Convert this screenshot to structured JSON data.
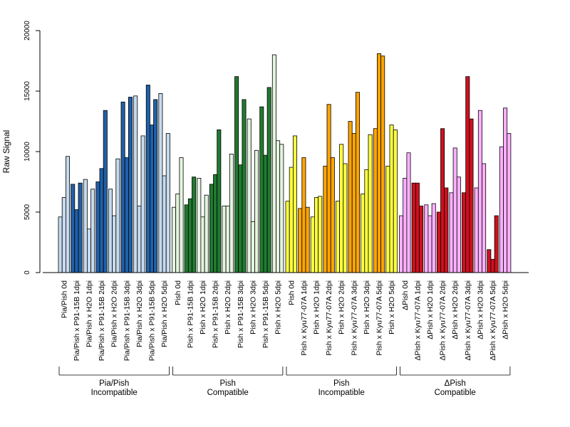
{
  "chart_data": {
    "type": "bar",
    "title": "",
    "xlabel": "",
    "ylabel": "Raw Signal",
    "ylim": [
      0,
      20000
    ],
    "yticks": [
      0,
      5000,
      10000,
      15000,
      20000
    ],
    "grid": false,
    "categories": [
      "Pia/Pish 0d",
      "Pia/Pish x P91-15B 1dpi",
      "Pia/Pish x H2O 1dpi",
      "Pia/Pish x P91-15B 2dpi",
      "Pia/Pish x H2O 2dpi",
      "Pia/Pish x P91-15B 3dpi",
      "Pia/Pish x H2O 3dpi",
      "Pia/Pish x P91-15B 5dpi",
      "Pia/Pish x H2O 5dpi",
      "Pish 0d",
      "Pish x P91-15B 1dpi",
      "Pish x H2O 1dpi",
      "Pish x P91-15B 2dpi",
      "Pish x H2O 2dpi",
      "Pish x P91-15B 3dpi",
      "Pish x H2O 3dpi",
      "Pish x P91-15B 5dpi",
      "Pish x H2O 5dpi",
      "Pish 0d",
      "Pish x Kyu77-07A 1dpi",
      "Pish x H2O 1dpi",
      "Pish x Kyu77-07A 2dpi",
      "Pish x H2O 2dpi",
      "Pish x Kyu77-07A 3dpi",
      "Pish x H2O 3dpi",
      "Pish x Kyu77-07A 5dpi",
      "Pish x H2O 5dpi",
      "ΔPish 0d",
      "ΔPish x Kyu77-07A 1dpi",
      "ΔPish x H2O 1dpi",
      "ΔPish x Kyu77-07A 2dpi",
      "ΔPish x H2O 2dpi",
      "ΔPish x Kyu77-07A 3dpi",
      "ΔPish x H2O 3dpi",
      "ΔPish x Kyu77-07A 5dpi",
      "ΔPish x H2O 5dpi"
    ],
    "bar_colors": {
      "light_blue": "#c6dbef",
      "dark_blue": "#2060a8",
      "light_green": "#e5f5e0",
      "dark_green": "#207a30",
      "yellow": "#ffff40",
      "orange": "#ffa500",
      "pink": "#ffb0ff",
      "red": "#d0101e"
    },
    "groups": [
      {
        "label_line1": "Pia/Pish",
        "label_line2": "Incompatible",
        "colors": [
          "light_blue",
          "dark_blue",
          "light_blue",
          "dark_blue",
          "light_blue",
          "dark_blue",
          "light_blue",
          "dark_blue",
          "light_blue"
        ],
        "values": [
          [
            4600,
            6200,
            9600
          ],
          [
            7300,
            5200,
            7400
          ],
          [
            7700,
            3600,
            6900
          ],
          [
            7500,
            8600,
            13400
          ],
          [
            6900,
            4700,
            9400
          ],
          [
            14100,
            9500,
            14500
          ],
          [
            14600,
            5500,
            11300
          ],
          [
            15500,
            12200,
            14300
          ],
          [
            14800,
            8000,
            11500
          ]
        ]
      },
      {
        "label_line1": "Pish",
        "label_line2": "Compatible",
        "colors": [
          "light_green",
          "dark_green",
          "light_green",
          "dark_green",
          "light_green",
          "dark_green",
          "light_green",
          "dark_green",
          "light_green"
        ],
        "values": [
          [
            5400,
            6500,
            9500
          ],
          [
            5600,
            6100,
            7900
          ],
          [
            7800,
            4600,
            6400
          ],
          [
            7300,
            8100,
            11800
          ],
          [
            5500,
            5500,
            9800
          ],
          [
            16200,
            8900,
            14300
          ],
          [
            12700,
            4200,
            10100
          ],
          [
            13700,
            9700,
            15300
          ],
          [
            18000,
            10900,
            10600
          ]
        ]
      },
      {
        "label_line1": "Pish",
        "label_line2": "Incompatible",
        "colors": [
          "yellow",
          "orange",
          "yellow",
          "orange",
          "yellow",
          "orange",
          "yellow",
          "orange",
          "yellow"
        ],
        "values": [
          [
            5900,
            8700,
            11300
          ],
          [
            5300,
            9500,
            5400
          ],
          [
            4600,
            6200,
            6300
          ],
          [
            8800,
            13900,
            9500
          ],
          [
            5900,
            10600,
            9000
          ],
          [
            12500,
            11500,
            14900
          ],
          [
            6500,
            8500,
            11400
          ],
          [
            11900,
            18100,
            17900
          ],
          [
            8800,
            12200,
            11800
          ]
        ]
      },
      {
        "label_line1": "ΔPish",
        "label_line2": "Compatible",
        "colors": [
          "pink",
          "red",
          "pink",
          "red",
          "pink",
          "red",
          "pink",
          "red",
          "pink"
        ],
        "values": [
          [
            4700,
            7800,
            9900
          ],
          [
            7400,
            7400,
            5500
          ],
          [
            5600,
            4700,
            5700
          ],
          [
            5000,
            11900,
            7000
          ],
          [
            6600,
            10300,
            7900
          ],
          [
            6600,
            16200,
            12700
          ],
          [
            7000,
            13400,
            9000
          ],
          [
            1900,
            1100,
            4700
          ],
          [
            10400,
            13600,
            11500
          ]
        ]
      }
    ]
  }
}
